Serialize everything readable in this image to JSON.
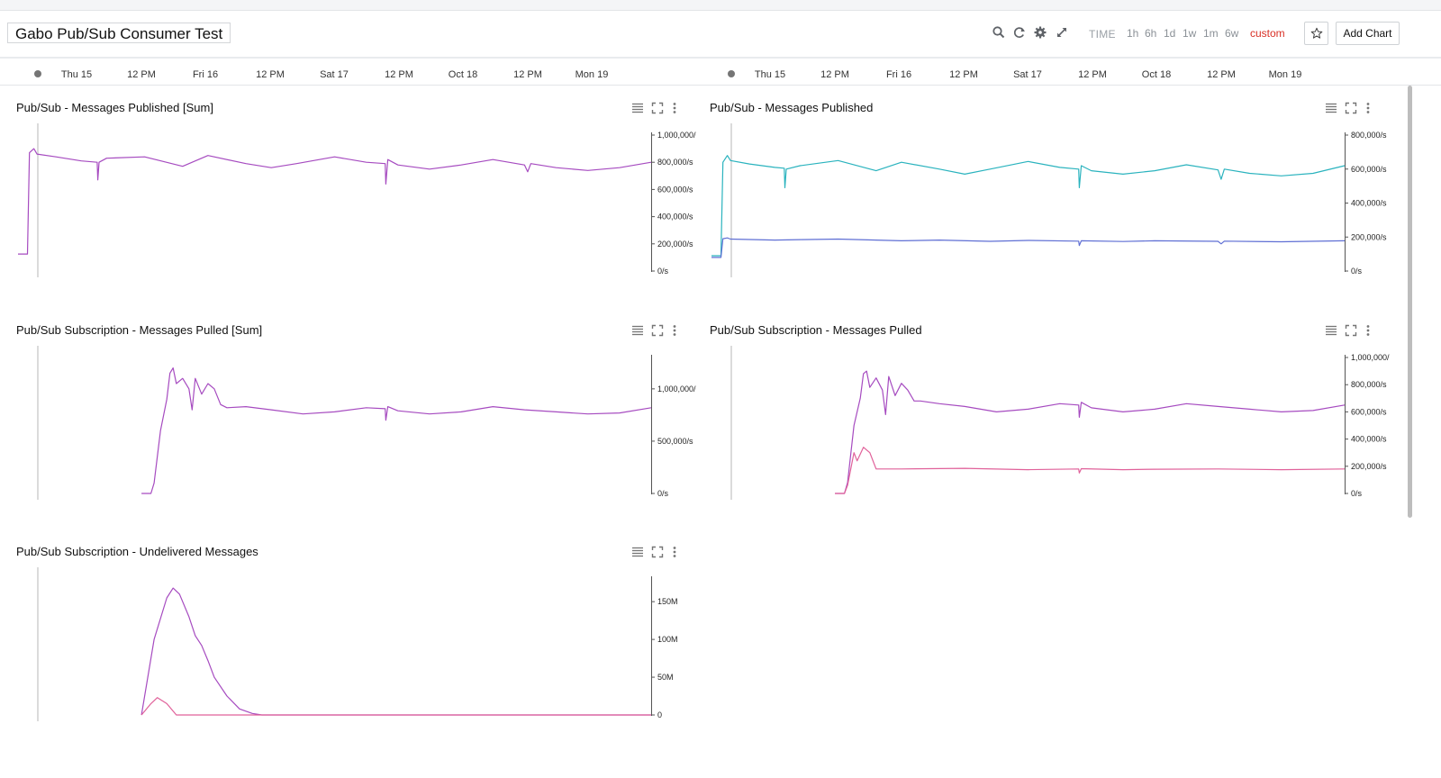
{
  "dashboard": {
    "title": "Gabo Pub/Sub Consumer Test",
    "time_label": "TIME",
    "time_options": [
      "1h",
      "6h",
      "1d",
      "1w",
      "1m",
      "6w",
      "custom"
    ],
    "active_time_option": "custom",
    "add_chart_label": "Add Chart",
    "header_icons": [
      "search-icon",
      "refresh-icon",
      "gear-icon",
      "expand-icon",
      "star-icon"
    ]
  },
  "timeline": {
    "labels": [
      "Thu 15",
      "12 PM",
      "Fri 16",
      "12 PM",
      "Sat 17",
      "12 PM",
      "Oct 18",
      "12 PM",
      "Mon 19"
    ]
  },
  "panels": [
    {
      "title": "Pub/Sub - Messages Published [Sum]",
      "icons": [
        "legend-icon",
        "fullscreen-icon",
        "more-icon"
      ],
      "chart_data": {
        "type": "line",
        "y_ticks": [
          0,
          200000,
          400000,
          600000,
          800000,
          1000000
        ],
        "y_tick_labels": [
          "0/s",
          "200,000/s",
          "400,000/s",
          "600,000/s",
          "800,000/s",
          "1,000,000/"
        ],
        "ylim": [
          0,
          1000000
        ],
        "series": [
          {
            "color": "#a64bc0",
            "x": [
              0,
              0.015,
              0.018,
              0.025,
              0.03,
              0.06,
              0.1,
              0.125,
              0.126,
              0.128,
              0.14,
              0.2,
              0.26,
              0.3,
              0.36,
              0.4,
              0.44,
              0.5,
              0.55,
              0.58,
              0.581,
              0.584,
              0.6,
              0.65,
              0.7,
              0.75,
              0.8,
              0.805,
              0.81,
              0.85,
              0.9,
              0.95,
              1
            ],
            "y": [
              125000,
              125000,
              870000,
              900000,
              860000,
              840000,
              810000,
              800000,
              670000,
              800000,
              830000,
              840000,
              770000,
              850000,
              790000,
              760000,
              790000,
              840000,
              800000,
              790000,
              640000,
              820000,
              780000,
              750000,
              780000,
              820000,
              780000,
              730000,
              790000,
              760000,
              740000,
              760000,
              800000
            ]
          }
        ]
      }
    },
    {
      "title": "Pub/Sub - Messages Published",
      "icons": [
        "legend-icon",
        "fullscreen-icon",
        "more-icon"
      ],
      "chart_data": {
        "type": "line",
        "y_ticks": [
          0,
          200000,
          400000,
          600000,
          800000
        ],
        "y_tick_labels": [
          "0/s",
          "200,000/s",
          "400,000/s",
          "600,000/s",
          "800,000/s"
        ],
        "ylim": [
          0,
          800000
        ],
        "series": [
          {
            "color": "#2ab3be",
            "x": [
              0,
              0.015,
              0.018,
              0.025,
              0.03,
              0.06,
              0.1,
              0.115,
              0.116,
              0.118,
              0.14,
              0.2,
              0.26,
              0.3,
              0.36,
              0.4,
              0.44,
              0.5,
              0.55,
              0.58,
              0.581,
              0.584,
              0.6,
              0.65,
              0.7,
              0.75,
              0.8,
              0.805,
              0.81,
              0.85,
              0.9,
              0.95,
              1
            ],
            "y": [
              90000,
              90000,
              640000,
              680000,
              650000,
              630000,
              610000,
              605000,
              490000,
              600000,
              620000,
              650000,
              590000,
              640000,
              600000,
              570000,
              600000,
              645000,
              610000,
              600000,
              490000,
              620000,
              590000,
              570000,
              590000,
              625000,
              595000,
              540000,
              600000,
              575000,
              560000,
              575000,
              620000
            ]
          },
          {
            "color": "#5f6fd4",
            "x": [
              0,
              0.015,
              0.018,
              0.025,
              0.03,
              0.1,
              0.14,
              0.2,
              0.3,
              0.36,
              0.44,
              0.5,
              0.58,
              0.581,
              0.584,
              0.65,
              0.7,
              0.8,
              0.805,
              0.81,
              0.9,
              1
            ],
            "y": [
              80000,
              80000,
              190000,
              195000,
              188000,
              182000,
              185000,
              188000,
              178000,
              182000,
              175000,
              180000,
              176000,
              150000,
              178000,
              174000,
              178000,
              175000,
              160000,
              176000,
              172000,
              178000
            ]
          }
        ]
      }
    },
    {
      "title": "Pub/Sub Subscription - Messages Pulled [Sum]",
      "icons": [
        "legend-icon",
        "fullscreen-icon",
        "more-icon"
      ],
      "chart_data": {
        "type": "line",
        "y_ticks": [
          0,
          500000,
          1000000
        ],
        "y_tick_labels": [
          "0/s",
          "500,000/s",
          "1,000,000/"
        ],
        "ylim": [
          0,
          1300000
        ],
        "series": [
          {
            "color": "#a64bc0",
            "x": [
              0.195,
              0.21,
              0.215,
              0.225,
              0.235,
              0.24,
              0.245,
              0.25,
              0.26,
              0.27,
              0.275,
              0.28,
              0.29,
              0.3,
              0.31,
              0.32,
              0.33,
              0.36,
              0.4,
              0.45,
              0.5,
              0.55,
              0.58,
              0.581,
              0.584,
              0.6,
              0.65,
              0.7,
              0.75,
              0.8,
              0.85,
              0.9,
              0.95,
              1
            ],
            "y": [
              0,
              0,
              100000,
              600000,
              900000,
              1150000,
              1200000,
              1050000,
              1100000,
              1000000,
              800000,
              1100000,
              950000,
              1050000,
              1000000,
              850000,
              820000,
              830000,
              800000,
              760000,
              780000,
              820000,
              810000,
              700000,
              830000,
              790000,
              760000,
              780000,
              830000,
              800000,
              780000,
              760000,
              770000,
              820000
            ]
          }
        ]
      }
    },
    {
      "title": "Pub/Sub Subscription - Messages Pulled",
      "icons": [
        "legend-icon",
        "fullscreen-icon",
        "more-icon"
      ],
      "chart_data": {
        "type": "line",
        "y_ticks": [
          0,
          200000,
          400000,
          600000,
          800000,
          1000000
        ],
        "y_tick_labels": [
          "0/s",
          "200,000/s",
          "400,000/s",
          "600,000/s",
          "800,000/s",
          "1,000,000/"
        ],
        "ylim": [
          0,
          1000000
        ],
        "series": [
          {
            "color": "#a64bc0",
            "x": [
              0.195,
              0.21,
              0.215,
              0.225,
              0.235,
              0.24,
              0.245,
              0.25,
              0.26,
              0.27,
              0.275,
              0.28,
              0.29,
              0.3,
              0.31,
              0.32,
              0.33,
              0.36,
              0.4,
              0.45,
              0.5,
              0.55,
              0.58,
              0.581,
              0.584,
              0.6,
              0.65,
              0.7,
              0.75,
              0.8,
              0.85,
              0.9,
              0.95,
              1
            ],
            "y": [
              0,
              0,
              80000,
              500000,
              700000,
              880000,
              900000,
              780000,
              850000,
              760000,
              580000,
              860000,
              720000,
              810000,
              760000,
              680000,
              680000,
              660000,
              640000,
              600000,
              620000,
              660000,
              650000,
              560000,
              670000,
              630000,
              600000,
              620000,
              660000,
              640000,
              620000,
              600000,
              610000,
              650000
            ]
          },
          {
            "color": "#e0619a",
            "x": [
              0.195,
              0.21,
              0.215,
              0.225,
              0.23,
              0.24,
              0.245,
              0.25,
              0.26,
              0.3,
              0.4,
              0.5,
              0.58,
              0.581,
              0.584,
              0.65,
              0.7,
              0.8,
              0.9,
              1
            ],
            "y": [
              0,
              0,
              60000,
              300000,
              240000,
              340000,
              320000,
              300000,
              180000,
              180000,
              185000,
              175000,
              180000,
              150000,
              182000,
              175000,
              178000,
              180000,
              175000,
              180000
            ]
          }
        ]
      }
    },
    {
      "title": "Pub/Sub Subscription - Undelivered Messages",
      "icons": [
        "legend-icon",
        "fullscreen-icon",
        "more-icon"
      ],
      "chart_data": {
        "type": "line",
        "y_ticks": [
          0,
          50000000,
          100000000,
          150000000
        ],
        "y_tick_labels": [
          "0",
          "50M",
          "100M",
          "150M"
        ],
        "ylim": [
          0,
          180000000
        ],
        "series": [
          {
            "color": "#a64bc0",
            "x": [
              0.195,
              0.215,
              0.235,
              0.245,
              0.255,
              0.27,
              0.28,
              0.29,
              0.3,
              0.31,
              0.33,
              0.35,
              0.37,
              0.385,
              1
            ],
            "y": [
              0,
              100000000,
              155000000,
              168000000,
              160000000,
              130000000,
              105000000,
              92000000,
              72000000,
              50000000,
              25000000,
              8000000,
              2000000,
              0,
              0
            ]
          },
          {
            "color": "#e0619a",
            "x": [
              0.195,
              0.21,
              0.22,
              0.235,
              0.25,
              1
            ],
            "y": [
              0,
              15000000,
              23000000,
              15000000,
              0,
              0
            ]
          }
        ]
      }
    }
  ]
}
